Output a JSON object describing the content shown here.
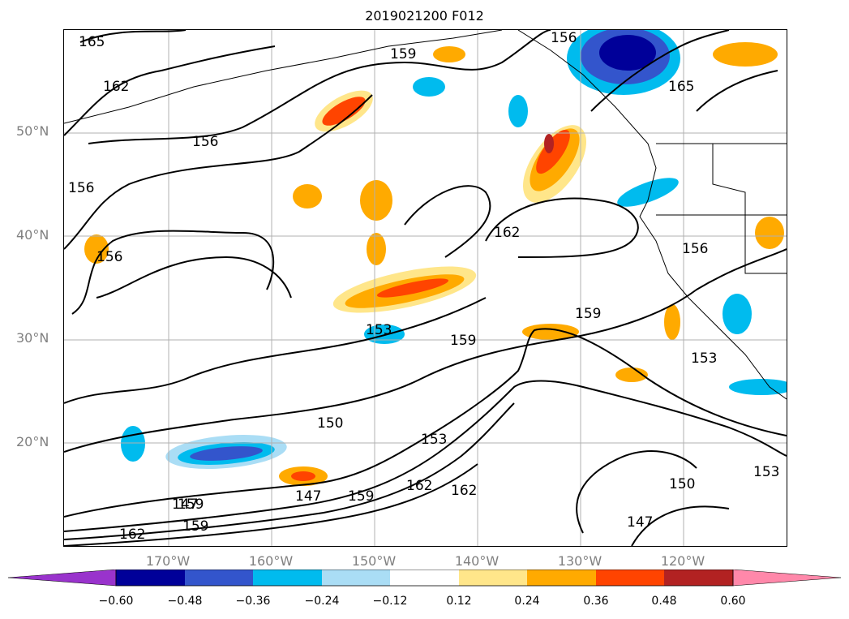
{
  "title": "2019021200 F012",
  "lat_labels": [
    "50°N",
    "40°N",
    "30°N",
    "20°N"
  ],
  "lon_labels": [
    "170°W",
    "160°W",
    "150°W",
    "140°W",
    "130°W",
    "120°W"
  ],
  "contour_labels": [
    "165",
    "162",
    "159",
    "156",
    "156",
    "156",
    "153",
    "150",
    "147",
    "162",
    "159",
    "159",
    "153",
    "159",
    "162",
    "162",
    "159",
    "165",
    "156",
    "153",
    "150",
    "147",
    "153",
    "159",
    "162",
    "147",
    "156"
  ],
  "colorbar": {
    "ticks": [
      "−0.60",
      "−0.48",
      "−0.36",
      "−0.24",
      "−0.12",
      "0.12",
      "0.24",
      "0.36",
      "0.48",
      "0.60"
    ],
    "colors": [
      "#9933cc",
      "#000099",
      "#3355cc",
      "#00bbee",
      "#aaddf5",
      "#ffffff",
      "#ffe68a",
      "#ffaa00",
      "#ff4400",
      "#b22222",
      "#ff88aa"
    ]
  }
}
